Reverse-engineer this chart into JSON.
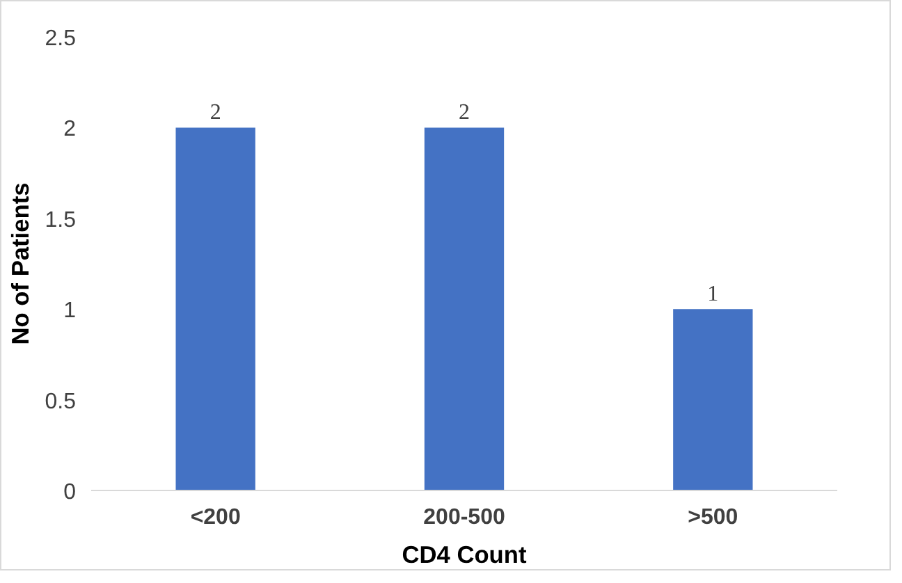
{
  "chart_data": {
    "type": "bar",
    "xlabel": "CD4 Count",
    "ylabel": "No of Patients",
    "categories": [
      "<200",
      "200-500",
      ">500"
    ],
    "values": [
      2,
      2,
      1
    ],
    "color": "#4472c4",
    "ylim": [
      0,
      2.5
    ],
    "yticks": [
      0,
      0.5,
      1,
      1.5,
      2,
      2.5
    ],
    "grid": false,
    "data_labels": true
  }
}
